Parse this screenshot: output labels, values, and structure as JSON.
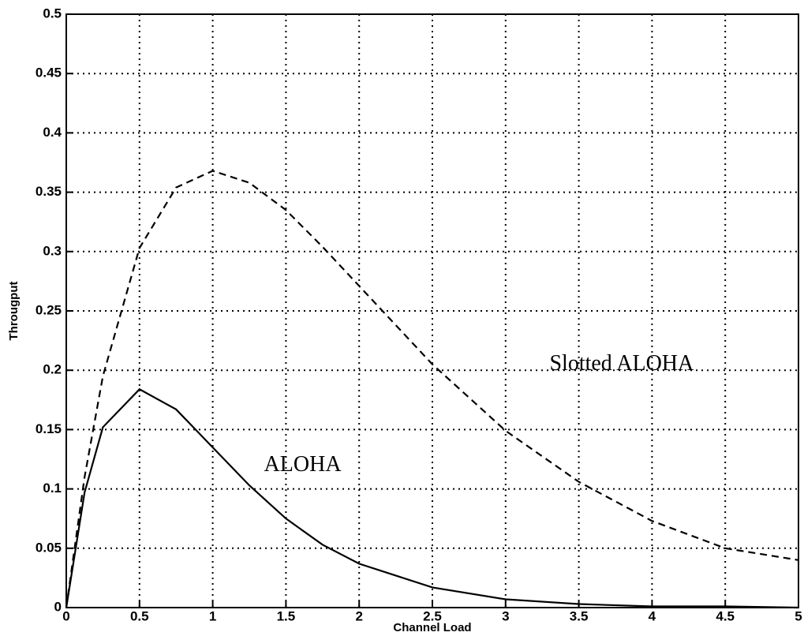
{
  "chart_data": {
    "type": "line",
    "x_label": "Channel Load",
    "y_label": "Througput",
    "x": [
      0,
      0.125,
      0.25,
      0.5,
      0.75,
      1,
      1.25,
      1.5,
      1.75,
      2,
      2.5,
      3,
      3.5,
      4,
      4.5,
      5
    ],
    "series": [
      {
        "name": "ALOHA",
        "color": "#000000",
        "style": "solid",
        "values": [
          0,
          0.097,
          0.152,
          0.184,
          0.167,
          0.135,
          0.103,
          0.075,
          0.053,
          0.037,
          0.017,
          0.007,
          0.003,
          0.001,
          0.001,
          0
        ]
      },
      {
        "name": "Slotted ALOHA",
        "color": "#000000",
        "style": "dashed",
        "values": [
          0,
          0.11,
          0.195,
          0.303,
          0.354,
          0.368,
          0.358,
          0.335,
          0.304,
          0.271,
          0.205,
          0.149,
          0.106,
          0.073,
          0.05,
          0.04
        ]
      }
    ],
    "annotations": [
      {
        "text": "Slotted ALOHA",
        "x": 3.3,
        "y": 0.2
      },
      {
        "text": "ALOHA",
        "x": 1.35,
        "y": 0.115
      }
    ],
    "xlim": [
      0,
      5
    ],
    "ylim": [
      0,
      0.5
    ],
    "xticks": [
      0,
      0.5,
      1,
      1.5,
      2,
      2.5,
      3,
      3.5,
      4,
      4.5,
      5
    ],
    "yticks": [
      0,
      0.05,
      0.1,
      0.15,
      0.2,
      0.25,
      0.3,
      0.35,
      0.4,
      0.45,
      0.5
    ],
    "grid": true
  }
}
